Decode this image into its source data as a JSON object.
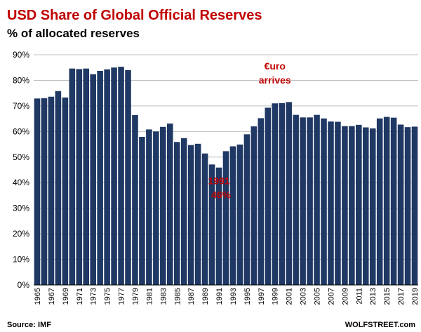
{
  "header": {
    "title": "USD Share of Global Official Reserves",
    "subtitle": "% of allocated reserves"
  },
  "footer": {
    "source": "Source: IMF",
    "brand": "WOLFSTREET.com"
  },
  "colors": {
    "bar": "#1f3864",
    "title": "#c00000",
    "annotation": "#c00000",
    "grid": "#bfbfbf"
  },
  "chart_data": {
    "type": "bar",
    "title": "USD Share of Global Official Reserves",
    "subtitle": "% of allocated reserves",
    "xlabel": "",
    "ylabel": "",
    "ylim": [
      0,
      90
    ],
    "y_ticks": [
      "0%",
      "10%",
      "20%",
      "30%",
      "40%",
      "50%",
      "60%",
      "70%",
      "80%",
      "90%"
    ],
    "y_tick_values": [
      0,
      10,
      20,
      30,
      40,
      50,
      60,
      70,
      80,
      90
    ],
    "grid": true,
    "legend": "none",
    "categories": [
      "1965",
      "1966",
      "1967",
      "1968",
      "1969",
      "1970",
      "1971",
      "1972",
      "1973",
      "1974",
      "1975",
      "1976",
      "1977",
      "1978",
      "1979",
      "1980",
      "1981",
      "1982",
      "1983",
      "1984",
      "1985",
      "1986",
      "1987",
      "1988",
      "1989",
      "1990",
      "1991",
      "1992",
      "1993",
      "1994",
      "1995",
      "1996",
      "1997",
      "1998",
      "1999",
      "2000",
      "2001",
      "2002",
      "2003",
      "2004",
      "2005",
      "2006",
      "2007",
      "2008",
      "2009",
      "2010",
      "2011",
      "2012",
      "2013",
      "2014",
      "2015",
      "2016",
      "2017",
      "2018",
      "2019"
    ],
    "tick_labels": [
      "1965",
      "1967",
      "1969",
      "1971",
      "1973",
      "1975",
      "1977",
      "1979",
      "1981",
      "1983",
      "1985",
      "1987",
      "1989",
      "1991",
      "1993",
      "1995",
      "1997",
      "1999",
      "2001",
      "2003",
      "2005",
      "2007",
      "2009",
      "2011",
      "2013",
      "2015",
      "2017",
      "2019"
    ],
    "values": [
      72.9,
      73.0,
      73.6,
      75.8,
      73.3,
      84.6,
      84.4,
      84.6,
      82.4,
      83.7,
      84.3,
      85.0,
      85.3,
      84.0,
      66.4,
      57.9,
      60.8,
      60.0,
      61.8,
      63.1,
      55.9,
      57.4,
      54.7,
      55.2,
      51.4,
      47.1,
      45.9,
      52.3,
      54.2,
      54.9,
      58.9,
      62.0,
      65.2,
      69.3,
      71.0,
      71.1,
      71.5,
      66.5,
      65.5,
      65.5,
      66.5,
      65.1,
      63.9,
      63.8,
      62.1,
      62.1,
      62.6,
      61.6,
      61.2,
      65.1,
      65.7,
      65.4,
      62.7,
      61.7,
      61.9
    ],
    "annotations": [
      {
        "lines": [
          "€uro",
          "arrives"
        ],
        "year": "1999"
      },
      {
        "lines": [
          "1991",
          "46%"
        ],
        "year": "1991"
      }
    ]
  }
}
